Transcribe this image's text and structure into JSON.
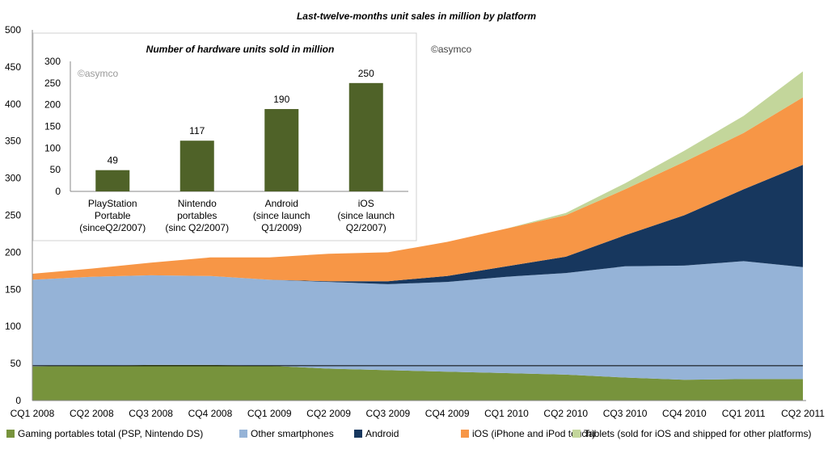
{
  "chart_data": [
    {
      "type": "area",
      "stacked": true,
      "title": "Last-twelve-months unit sales in million by platform",
      "watermark": "©asymco",
      "categories": [
        "CQ1 2008",
        "CQ2 2008",
        "CQ3 2008",
        "CQ4 2008",
        "CQ1 2009",
        "CQ2 2009",
        "CQ3 2009",
        "CQ4 2009",
        "CQ1 2010",
        "CQ2 2010",
        "CQ3 2010",
        "CQ4 2010",
        "CQ1 2011",
        "CQ2 2011"
      ],
      "ylim": [
        0,
        500
      ],
      "yticks": [
        0,
        50,
        100,
        150,
        200,
        250,
        300,
        350,
        400,
        450,
        500
      ],
      "grid": false,
      "legend_position": "bottom",
      "reference_line": 47,
      "series": [
        {
          "name": "Gaming portables total (PSP, Nintendo DS)",
          "color": "#77933c",
          "values": [
            46,
            47,
            48,
            48,
            47,
            43,
            41,
            39,
            37,
            35,
            31,
            28,
            29,
            29
          ]
        },
        {
          "name": "Other smartphones",
          "color": "#95b3d7",
          "values": [
            117,
            120,
            121,
            120,
            116,
            117,
            116,
            121,
            130,
            137,
            150,
            154,
            159,
            151
          ]
        },
        {
          "name": "Android",
          "color": "#17375e",
          "values": [
            0,
            0,
            0,
            0,
            0,
            1,
            4,
            8,
            14,
            22,
            42,
            68,
            97,
            138
          ]
        },
        {
          "name": "iOS (iPhone and iPod touch)",
          "color": "#f79646",
          "values": [
            8,
            11,
            17,
            25,
            30,
            37,
            39,
            46,
            51,
            56,
            62,
            72,
            76,
            91
          ]
        },
        {
          "name": "Tablets (sold for iOS and shipped for other platforms)",
          "color": "#c3d69b",
          "values": [
            0,
            0,
            0,
            0,
            0,
            0,
            0,
            0,
            0,
            3,
            8,
            15,
            23,
            35
          ]
        }
      ]
    },
    {
      "type": "bar",
      "title": "Number of hardware units sold in million",
      "watermark": "©asymco",
      "categories": [
        [
          "PlayStation",
          "Portable",
          "(sinceQ2/2007)"
        ],
        [
          "Nintendo",
          "portables",
          "(sinc Q2/2007)"
        ],
        [
          "Android",
          "(since launch",
          "Q1/2009)"
        ],
        [
          "iOS",
          "(since launch",
          "Q2/2007)"
        ]
      ],
      "values": [
        49,
        117,
        190,
        250
      ],
      "value_labels": [
        "49",
        "117",
        "190",
        "250"
      ],
      "ylim": [
        0,
        300
      ],
      "yticks": [
        0,
        50,
        100,
        150,
        200,
        250,
        300
      ],
      "color": "#4f6228"
    }
  ]
}
